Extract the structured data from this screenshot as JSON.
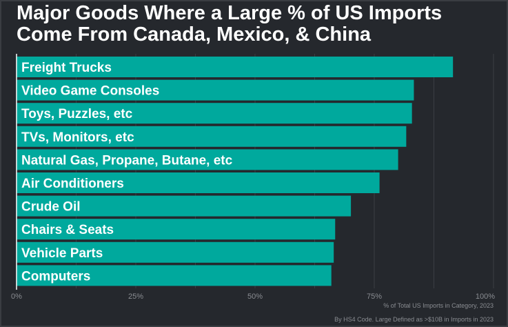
{
  "chart_data": {
    "type": "bar",
    "orientation": "horizontal",
    "title": "Major Goods Where a Large % of US Imports Come From Canada, Mexico, & China",
    "title_lines": [
      "Major Goods Where a Large % of US Imports",
      "Come From Canada, Mexico, & China"
    ],
    "categories": [
      "Freight Trucks",
      "Video Game Consoles",
      "Toys, Puzzles, etc",
      "TVs, Monitors, etc",
      "Natural Gas, Propane, Butane, etc",
      "Air Conditioners",
      "Crude Oil",
      "Chairs & Seats",
      "Vehicle Parts",
      "Computers"
    ],
    "values": [
      91.5,
      83.3,
      82.9,
      81.7,
      80.0,
      76.1,
      70.1,
      66.8,
      66.5,
      66.0
    ],
    "xlim": [
      0,
      100
    ],
    "xticks": [
      "0%",
      "25%",
      "50%",
      "75%",
      "100%"
    ],
    "xticks_values": [
      0,
      25,
      50,
      75,
      100
    ],
    "xlabel": "% of Total US Imports in Category, 2023",
    "ylabel": "",
    "caption": "By HS4 Code. Large Defined as >$10B in Imports in 2023",
    "bar_color": "#00a99d",
    "grid": true
  }
}
